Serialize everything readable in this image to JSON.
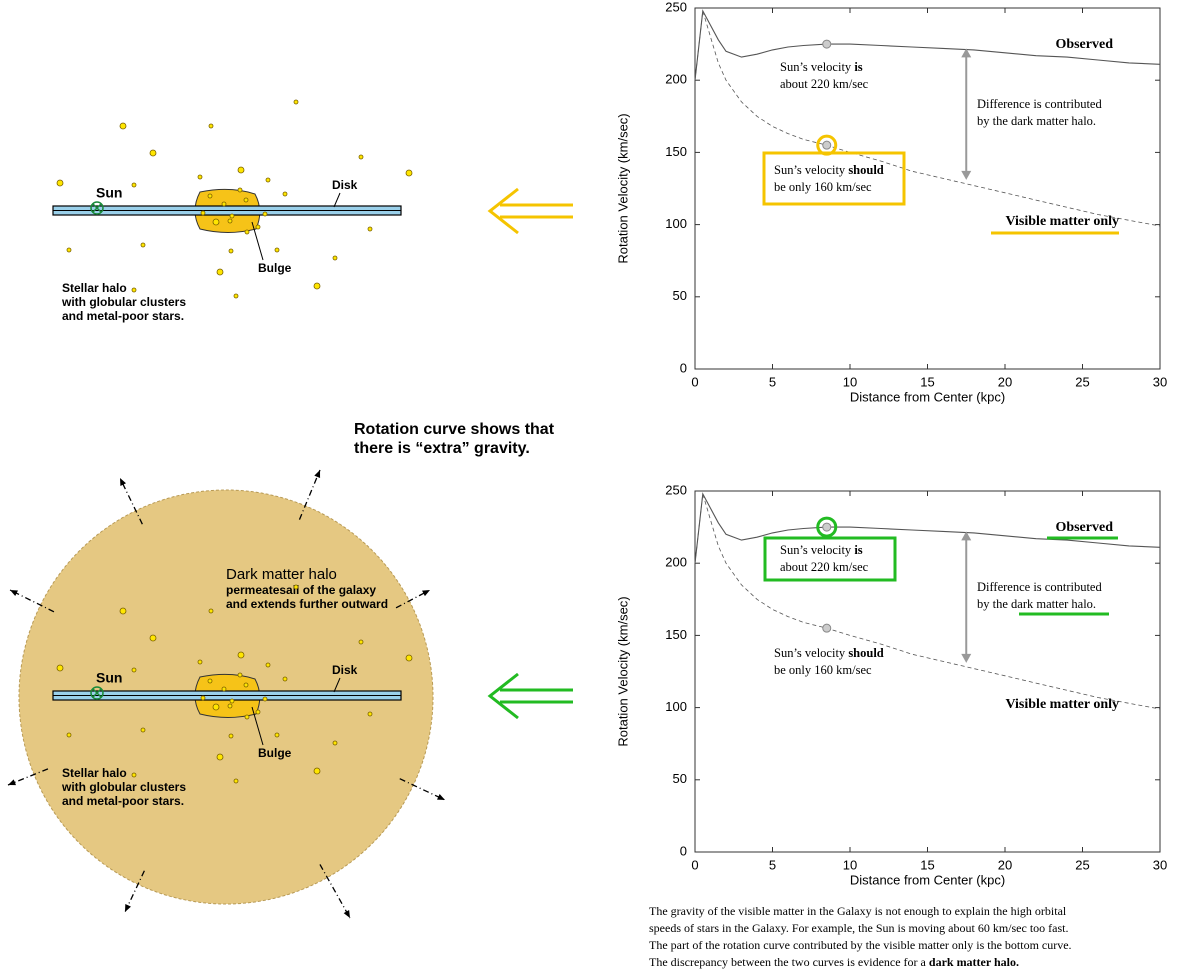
{
  "chart_data": [
    {
      "type": "line",
      "xlabel": "Distance from Center (kpc)",
      "ylabel": "Rotation Velocity (km/sec)",
      "xlim": [
        0,
        30
      ],
      "ylim": [
        0,
        250
      ],
      "xticks": [
        0,
        5,
        10,
        15,
        20,
        25,
        30
      ],
      "yticks": [
        0,
        50,
        100,
        150,
        200,
        250
      ],
      "series": [
        {
          "name": "Observed",
          "color": "#555555",
          "style": "solid",
          "x": [
            0,
            0.5,
            1,
            1.5,
            2,
            3,
            4,
            5,
            6,
            7,
            8.5,
            10,
            12,
            14,
            16,
            18,
            20,
            22,
            24,
            26,
            28,
            30
          ],
          "values": [
            200,
            248,
            238,
            228,
            220,
            216,
            218,
            221,
            223,
            224,
            225,
            225,
            224,
            223,
            222,
            221,
            219,
            217,
            216,
            214,
            212,
            211
          ]
        },
        {
          "name": "Visible matter only",
          "color": "#555555",
          "style": "dashed",
          "x": [
            0,
            0.5,
            1,
            1.5,
            2,
            3,
            4,
            5,
            6,
            7,
            8.5,
            10,
            12,
            14,
            16,
            18,
            20,
            22,
            24,
            26,
            28,
            30
          ],
          "values": [
            200,
            248,
            230,
            212,
            200,
            185,
            175,
            168,
            163,
            159,
            155,
            150,
            144,
            137,
            132,
            127,
            122,
            117,
            112,
            107,
            103,
            99
          ]
        }
      ],
      "markers": [
        {
          "x": 8.5,
          "y": 225
        },
        {
          "x": 8.5,
          "y": 155
        }
      ],
      "difference_arrow": {
        "x": 17.5,
        "y": [
          131,
          222
        ]
      },
      "annotations": [
        {
          "lines": [
            [
              "Sun’s velocity ",
              "is"
            ],
            [
              "about 220 km/sec"
            ]
          ]
        },
        {
          "lines": [
            [
              "Difference is contributed"
            ],
            [
              "by the dark matter halo."
            ]
          ]
        },
        {
          "lines": [
            [
              "Sun’s velocity ",
              "should"
            ],
            [
              "be only 160 km/sec"
            ]
          ]
        }
      ],
      "highlight_color": "#f5c400"
    },
    {
      "type": "line",
      "xlabel": "Distance from Center (kpc)",
      "ylabel": "Rotation Velocity (km/sec)",
      "xlim": [
        0,
        30
      ],
      "ylim": [
        0,
        250
      ],
      "xticks": [
        0,
        5,
        10,
        15,
        20,
        25,
        30
      ],
      "yticks": [
        0,
        50,
        100,
        150,
        200,
        250
      ],
      "series": [
        {
          "name": "Observed",
          "color": "#555555",
          "style": "solid",
          "x": [
            0,
            0.5,
            1,
            1.5,
            2,
            3,
            4,
            5,
            6,
            7,
            8.5,
            10,
            12,
            14,
            16,
            18,
            20,
            22,
            24,
            26,
            28,
            30
          ],
          "values": [
            200,
            248,
            238,
            228,
            220,
            216,
            218,
            221,
            223,
            224,
            225,
            225,
            224,
            223,
            222,
            221,
            219,
            217,
            216,
            214,
            212,
            211
          ]
        },
        {
          "name": "Visible matter only",
          "color": "#555555",
          "style": "dashed",
          "x": [
            0,
            0.5,
            1,
            1.5,
            2,
            3,
            4,
            5,
            6,
            7,
            8.5,
            10,
            12,
            14,
            16,
            18,
            20,
            22,
            24,
            26,
            28,
            30
          ],
          "values": [
            200,
            248,
            230,
            212,
            200,
            185,
            175,
            168,
            163,
            159,
            155,
            150,
            144,
            137,
            132,
            127,
            122,
            117,
            112,
            107,
            103,
            99
          ]
        }
      ],
      "markers": [
        {
          "x": 8.5,
          "y": 225
        },
        {
          "x": 8.5,
          "y": 155
        }
      ],
      "difference_arrow": {
        "x": 17.5,
        "y": [
          131,
          222
        ]
      },
      "annotations": [
        {
          "lines": [
            [
              "Sun’s velocity ",
              "is"
            ],
            [
              "about 220 km/sec"
            ]
          ]
        },
        {
          "lines": [
            [
              "Difference is contributed"
            ],
            [
              "by the dark matter halo."
            ]
          ]
        },
        {
          "lines": [
            [
              "Sun’s velocity ",
              "should"
            ],
            [
              "be only 160 km/sec"
            ]
          ]
        }
      ],
      "highlight_color": "#22bb22"
    }
  ],
  "diagrams": [
    {
      "sun": "Sun",
      "disk": "Disk",
      "bulge": "Bulge",
      "halo_text": [
        "Stellar halo",
        "with globular clusters",
        "and metal-poor stars."
      ],
      "arrow_color": "#f5c400"
    },
    {
      "sun": "Sun",
      "disk": "Disk",
      "bulge": "Bulge",
      "halo_text": [
        "Stellar halo",
        "with globular clusters",
        "and metal-poor stars."
      ],
      "arrow_color": "#22bb22",
      "dark_matter": [
        "Dark matter halo",
        "permeatesall of the galaxy",
        "and extends further outward"
      ]
    }
  ],
  "headline": [
    "Rotation curve shows that",
    "there is “extra” gravity."
  ],
  "caption": [
    [
      "The gravity of the visible matter in the Galaxy is not enough to explain the high orbital"
    ],
    [
      "speeds of stars in the Galaxy. For example, the Sun is moving about 60 km/sec too fast."
    ],
    [
      "The part of the rotation curve contributed by the visible matter only is the bottom curve."
    ],
    [
      "The discrepancy between the two curves is evidence for a ",
      "dark matter halo."
    ]
  ]
}
